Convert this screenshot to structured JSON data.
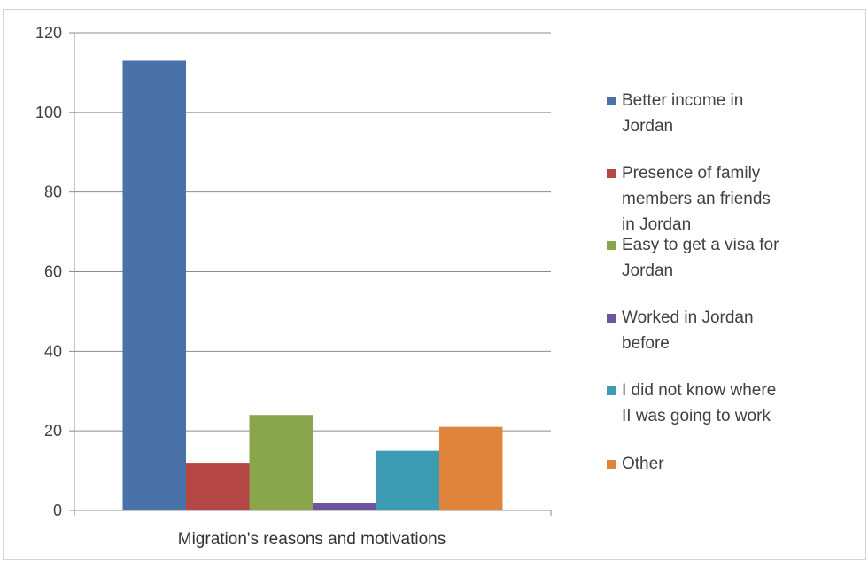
{
  "chart_data": {
    "type": "bar",
    "title": "",
    "xlabel": "",
    "ylabel": "",
    "categories": [
      "Migration's reasons and motivations"
    ],
    "ylim": [
      0,
      120
    ],
    "yticks": [
      0,
      20,
      40,
      60,
      80,
      100,
      120
    ],
    "ytick_labels": [
      "0",
      "20",
      "40",
      "60",
      "80",
      "100",
      "120"
    ],
    "grid": true,
    "legend_position": "right",
    "series": [
      {
        "name": "Better income in Jordan",
        "values": [
          113
        ],
        "color": "#4a72a8",
        "legend_lines": [
          "Better income in",
          "Jordan"
        ]
      },
      {
        "name": "Presence of family members an friends in Jordan",
        "values": [
          12
        ],
        "color": "#b44646",
        "legend_lines": [
          "Presence of family",
          "members an friends",
          "in Jordan"
        ]
      },
      {
        "name": "Easy to get a visa for Jordan",
        "values": [
          24
        ],
        "color": "#8aa64c",
        "legend_lines": [
          "Easy to get a visa for",
          "Jordan"
        ]
      },
      {
        "name": "Worked in Jordan before",
        "values": [
          2
        ],
        "color": "#6e55a0",
        "legend_lines": [
          "Worked in Jordan",
          "before"
        ]
      },
      {
        "name": "I did not know where II was going to work",
        "values": [
          15
        ],
        "color": "#3d9bb3",
        "legend_lines": [
          "I did not know where",
          "II was going to work"
        ]
      },
      {
        "name": "Other",
        "values": [
          21
        ],
        "color": "#e0843c",
        "legend_lines": [
          "Other"
        ]
      }
    ]
  }
}
